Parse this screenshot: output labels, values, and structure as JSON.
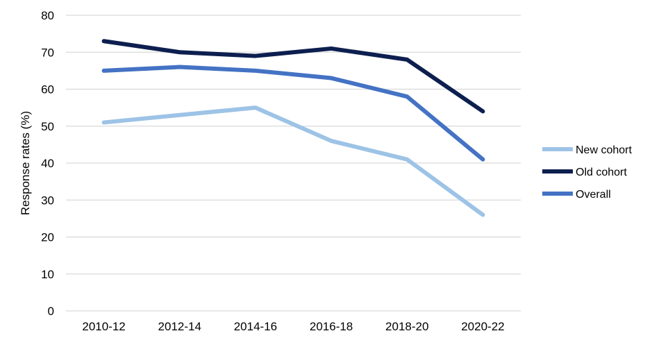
{
  "chart_data": {
    "type": "line",
    "title": "",
    "xlabel": "",
    "ylabel": "Response rates (%)",
    "categories": [
      "2010-12",
      "2012-14",
      "2014-16",
      "2016-18",
      "2018-20",
      "2020-22"
    ],
    "ylim": [
      0,
      80
    ],
    "yticks": [
      0,
      10,
      20,
      30,
      40,
      50,
      60,
      70,
      80
    ],
    "grid": true,
    "legend_position": "right",
    "series": [
      {
        "name": "New cohort",
        "color": "#9dc3e6",
        "values": [
          51,
          53,
          55,
          46,
          41,
          26
        ]
      },
      {
        "name": "Old cohort",
        "color": "#0d1f4f",
        "values": [
          73,
          70,
          69,
          71,
          68,
          54
        ]
      },
      {
        "name": "Overall",
        "color": "#4472c4",
        "values": [
          65,
          66,
          65,
          63,
          58,
          41
        ]
      }
    ]
  }
}
